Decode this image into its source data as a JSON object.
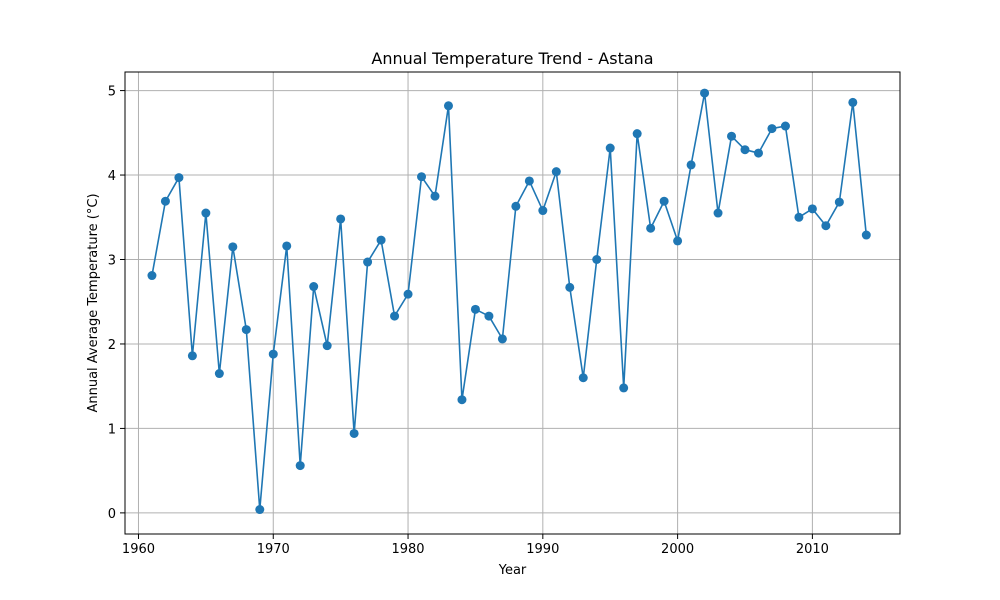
{
  "chart_data": {
    "type": "line",
    "title": "Annual Temperature Trend - Astana",
    "xlabel": "Year",
    "ylabel": "Annual Average Temperature (°C)",
    "xlim": [
      1959,
      2016.5
    ],
    "ylim": [
      -0.25,
      5.22
    ],
    "xticks": [
      1960,
      1970,
      1980,
      1990,
      2000,
      2010
    ],
    "yticks": [
      0,
      1,
      2,
      3,
      4,
      5
    ],
    "grid": true,
    "color": "#1f77b4",
    "marker": "circle",
    "x": [
      1961,
      1962,
      1963,
      1964,
      1965,
      1966,
      1967,
      1968,
      1969,
      1970,
      1971,
      1972,
      1973,
      1974,
      1975,
      1976,
      1977,
      1978,
      1979,
      1980,
      1981,
      1982,
      1983,
      1984,
      1985,
      1986,
      1987,
      1988,
      1989,
      1990,
      1991,
      1992,
      1993,
      1994,
      1995,
      1996,
      1997,
      1998,
      1999,
      2000,
      2001,
      2002,
      2003,
      2004,
      2005,
      2006,
      2007,
      2008,
      2009,
      2010,
      2011,
      2012,
      2013,
      2014
    ],
    "y": [
      2.81,
      3.69,
      3.97,
      1.86,
      3.55,
      1.65,
      3.15,
      2.17,
      0.04,
      1.88,
      3.16,
      0.56,
      2.68,
      1.98,
      3.48,
      0.94,
      2.97,
      3.23,
      2.33,
      2.59,
      3.98,
      3.75,
      4.82,
      1.34,
      2.41,
      2.33,
      2.06,
      3.63,
      3.93,
      3.58,
      4.04,
      2.67,
      1.6,
      3.0,
      4.32,
      1.48,
      4.49,
      3.37,
      3.69,
      3.22,
      4.12,
      4.97,
      3.55,
      4.46,
      4.3,
      4.26,
      4.55,
      4.58,
      3.5,
      3.6,
      3.4,
      3.68,
      4.86,
      3.29
    ]
  }
}
